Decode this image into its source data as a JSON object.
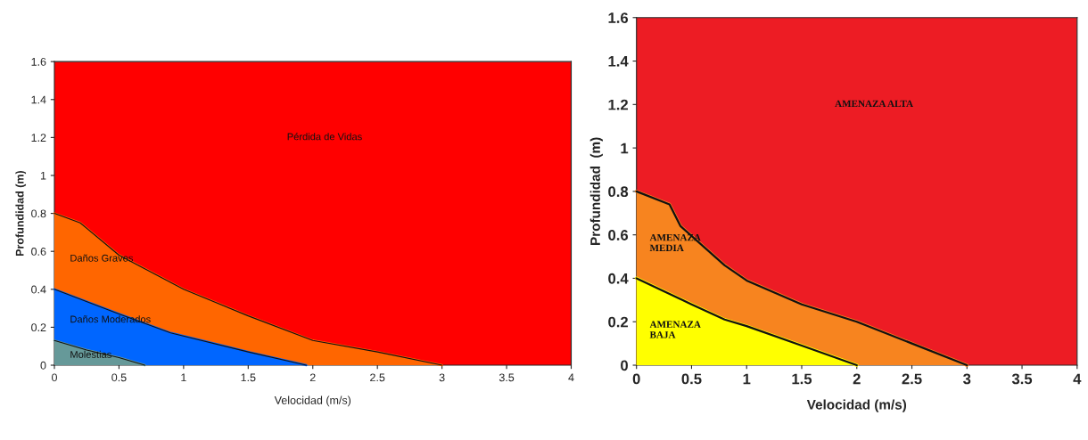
{
  "chart_data": [
    {
      "type": "area",
      "xlabel": "Velocidad (m/s)",
      "ylabel": "Profundidad (m)",
      "xlim": [
        0,
        4
      ],
      "ylim": [
        0,
        1.6
      ],
      "xticks": [
        0,
        0.5,
        1,
        1.5,
        2,
        2.5,
        3,
        3.5,
        4
      ],
      "yticks": [
        0,
        0.2,
        0.4,
        0.6,
        0.8,
        1,
        1.2,
        1.4,
        1.6
      ],
      "legend": false,
      "series": [
        {
          "name": "Molestias",
          "color": "#669999",
          "x": [
            0,
            0.25,
            0.5,
            0.7
          ],
          "values": [
            0.13,
            0.08,
            0.04,
            0
          ]
        },
        {
          "name": "Daños Moderados",
          "color": "#0066ff",
          "x": [
            0,
            0.5,
            0.9,
            1.5,
            1.95
          ],
          "values": [
            0.4,
            0.27,
            0.17,
            0.07,
            0
          ]
        },
        {
          "name": "Daños Graves",
          "color": "#ff6600",
          "x": [
            0,
            0.2,
            0.5,
            1,
            1.5,
            2,
            2.5,
            3
          ],
          "values": [
            0.8,
            0.75,
            0.58,
            0.4,
            0.26,
            0.13,
            0.07,
            0
          ]
        }
      ],
      "bands": [
        {
          "axis": "y",
          "from": 0,
          "to": 1.6,
          "label": "Pérdida de Vidas",
          "color": "#ff0000"
        }
      ]
    },
    {
      "type": "area",
      "xlabel": "Velocidad (m/s)",
      "ylabel": "Profundidad  (m)",
      "xlim": [
        0,
        4
      ],
      "ylim": [
        0,
        1.6
      ],
      "xticks": [
        0,
        0.5,
        1,
        1.5,
        2,
        2.5,
        3,
        3.5,
        4
      ],
      "yticks": [
        0,
        0.2,
        0.4,
        0.6,
        0.8,
        1,
        1.2,
        1.4,
        1.6
      ],
      "legend": false,
      "series": [
        {
          "name": "AMENAZA\nBAJA",
          "color": "#ffff00",
          "x": [
            0,
            0.5,
            0.8,
            1,
            1.5,
            2
          ],
          "values": [
            0.4,
            0.28,
            0.21,
            0.18,
            0.09,
            0
          ]
        },
        {
          "name": "AMENAZA\nMEDIA",
          "color": "#f7841f",
          "x": [
            0,
            0.3,
            0.4,
            0.8,
            1,
            1.5,
            2,
            2.5,
            3
          ],
          "values": [
            0.8,
            0.74,
            0.64,
            0.46,
            0.39,
            0.28,
            0.2,
            0.1,
            0
          ]
        }
      ],
      "bands": [
        {
          "axis": "y",
          "from": 0,
          "to": 1.6,
          "label": "AMENAZA ALTA",
          "color": "#ed1c24"
        }
      ]
    }
  ]
}
